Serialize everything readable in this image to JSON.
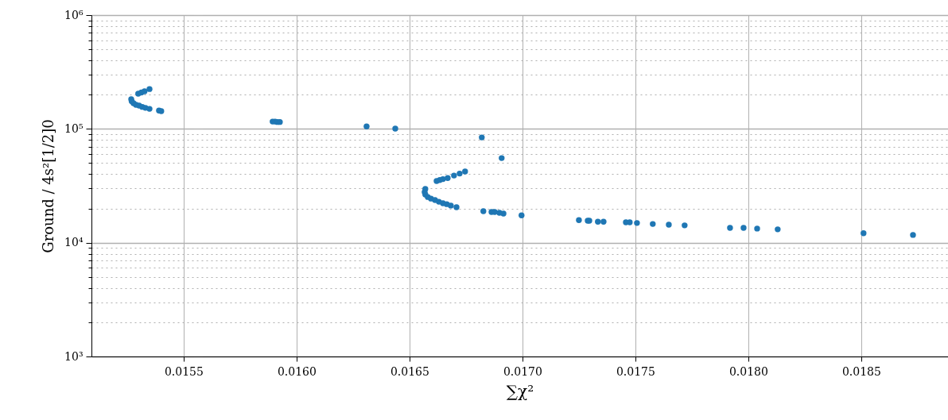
{
  "chart_data": {
    "type": "scatter",
    "xlabel": "∑χ²",
    "ylabel": "Ground / 4s²[1/2]0",
    "log": "y",
    "grid": true,
    "marker": "circle",
    "xlim": [
      0.015092,
      0.018884
    ],
    "xticks": [
      0.0155,
      {
        "value": 0.016,
        "label": "0.0160"
      },
      0.0165,
      {
        "value": 0.017,
        "label": "0.0170"
      },
      0.0175,
      {
        "value": 0.018,
        "label": "0.0180"
      },
      0.0185
    ],
    "ylim": [
      1000,
      1000000
    ],
    "yticks": [
      {
        "value": 1000,
        "label": "10³"
      },
      {
        "value": 2000,
        "label": null
      },
      {
        "value": 3000,
        "label": null
      },
      {
        "value": 4000,
        "label": null
      },
      {
        "value": 5000,
        "label": null
      },
      {
        "value": 6000,
        "label": null
      },
      {
        "value": 7000,
        "label": null
      },
      {
        "value": 8000,
        "label": null
      },
      {
        "value": 9000,
        "label": null
      },
      {
        "value": 10000,
        "label": "10⁴"
      },
      {
        "value": 20000,
        "label": null
      },
      {
        "value": 30000,
        "label": null
      },
      {
        "value": 40000,
        "label": null
      },
      {
        "value": 50000,
        "label": null
      },
      {
        "value": 60000,
        "label": null
      },
      {
        "value": 70000,
        "label": null
      },
      {
        "value": 80000,
        "label": null
      },
      {
        "value": 90000,
        "label": null
      },
      {
        "value": 100000,
        "label": "10⁵"
      },
      {
        "value": 200000,
        "label": null
      },
      {
        "value": 300000,
        "label": null
      },
      {
        "value": 400000,
        "label": null
      },
      {
        "value": 500000,
        "label": null
      },
      {
        "value": 600000,
        "label": null
      },
      {
        "value": 700000,
        "label": null
      },
      {
        "value": 800000,
        "label": null
      },
      {
        "value": 900000,
        "label": null
      },
      {
        "value": 1000000,
        "label": "10⁶"
      }
    ],
    "series": [
      {
        "color": "#1f77b4",
        "x": [
          0.015268,
          0.01527,
          0.015278,
          0.015289,
          0.015303,
          0.015317,
          0.015331,
          0.015349,
          0.015391,
          0.015401,
          0.015299,
          0.015313,
          0.015327,
          0.015349,
          0.015894,
          0.015905,
          0.015915,
          0.015926,
          0.01631,
          0.016437,
          0.01682,
          0.016908,
          0.01662,
          0.016634,
          0.016648,
          0.016669,
          0.016697,
          0.016722,
          0.016746,
          0.01657,
          0.016567,
          0.01657,
          0.016581,
          0.016595,
          0.016613,
          0.01663,
          0.016648,
          0.016665,
          0.016683,
          0.016708,
          0.016827,
          0.016863,
          0.016877,
          0.016898,
          0.016916,
          0.016996,
          0.01725,
          0.017289,
          0.017296,
          0.017334,
          0.017359,
          0.017458,
          0.017475,
          0.017507,
          0.017577,
          0.017648,
          0.017718,
          0.017919,
          0.017979,
          0.018039,
          0.01813,
          0.01851,
          0.018729
        ],
        "values": [
          182000,
          175000,
          168000,
          163000,
          160000,
          156000,
          153000,
          150000,
          145000,
          143000,
          204000,
          209000,
          214000,
          224000,
          116000,
          116000,
          115000,
          115000,
          105000,
          100500,
          84100,
          55400,
          34800,
          35500,
          36200,
          37000,
          38900,
          40500,
          42200,
          29700,
          27800,
          26500,
          25200,
          24400,
          23700,
          22900,
          22200,
          21800,
          21200,
          20500,
          18900,
          18600,
          18600,
          18300,
          18000,
          17400,
          15800,
          15600,
          15600,
          15300,
          15300,
          15100,
          15100,
          14900,
          14600,
          14400,
          14200,
          13500,
          13500,
          13300,
          13100,
          12100,
          11700
        ]
      }
    ]
  }
}
